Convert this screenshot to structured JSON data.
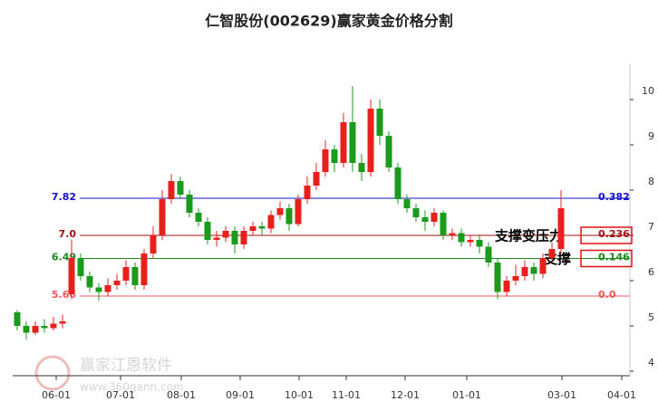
{
  "chart_data": {
    "type": "candlestick",
    "title": "仁智股份(002629)赢家黄金价格分割",
    "up_color": "#e8201c",
    "down_color": "#1c9a1c",
    "xlim": [
      -0.5,
      67.6
    ],
    "ylim": [
      3.9,
      10.8
    ],
    "yticks": [
      4,
      5,
      6,
      7,
      8,
      9,
      10
    ],
    "xticks": [
      {
        "value": 4.3,
        "label": "06-01"
      },
      {
        "value": 11.4,
        "label": "07-01"
      },
      {
        "value": 18.1,
        "label": "08-01"
      },
      {
        "value": 24.6,
        "label": "09-01"
      },
      {
        "value": 31.1,
        "label": "10-01"
      },
      {
        "value": 36.3,
        "label": "11-01"
      },
      {
        "value": 42.8,
        "label": "12-01"
      },
      {
        "value": 49.6,
        "label": "01-01"
      },
      {
        "value": 60.1,
        "label": "03-01"
      },
      {
        "value": 66.7,
        "label": "04-01"
      }
    ],
    "open": [
      5.3,
      5.0,
      4.85,
      5.0,
      4.95,
      5.05,
      5.7,
      6.5,
      6.1,
      5.85,
      5.75,
      5.9,
      6.0,
      6.3,
      5.9,
      6.6,
      7.0,
      7.8,
      8.2,
      7.9,
      7.5,
      7.3,
      6.9,
      6.95,
      7.1,
      6.8,
      7.1,
      7.2,
      7.15,
      7.45,
      7.6,
      7.25,
      7.8,
      8.1,
      8.4,
      8.9,
      8.6,
      9.5,
      8.6,
      8.4,
      9.8,
      9.2,
      8.5,
      7.8,
      7.6,
      7.4,
      7.3,
      7.5,
      7.0,
      7.05,
      6.85,
      6.9,
      6.75,
      6.4,
      5.75,
      6.0,
      6.1,
      6.3,
      6.15,
      6.5,
      6.7
    ],
    "close": [
      5.0,
      4.85,
      5.0,
      4.95,
      5.05,
      5.1,
      6.5,
      6.1,
      5.85,
      5.75,
      5.9,
      6.0,
      6.3,
      5.9,
      6.6,
      7.0,
      7.8,
      8.2,
      7.9,
      7.5,
      7.3,
      6.9,
      6.95,
      7.1,
      6.8,
      7.1,
      7.2,
      7.15,
      7.45,
      7.6,
      7.25,
      7.8,
      8.1,
      8.4,
      8.9,
      8.6,
      9.5,
      8.6,
      8.4,
      9.8,
      9.2,
      8.5,
      7.8,
      7.6,
      7.4,
      7.3,
      7.5,
      7.0,
      7.05,
      6.85,
      6.9,
      6.75,
      6.4,
      5.75,
      6.0,
      6.1,
      6.3,
      6.15,
      6.5,
      6.7,
      7.6
    ],
    "high": [
      5.35,
      5.1,
      5.1,
      5.15,
      5.2,
      5.25,
      6.9,
      6.6,
      6.2,
      5.95,
      6.05,
      6.15,
      6.45,
      6.4,
      6.7,
      7.2,
      8.0,
      8.35,
      8.3,
      8.0,
      7.6,
      7.4,
      7.1,
      7.2,
      7.2,
      7.2,
      7.3,
      7.3,
      7.55,
      7.75,
      7.7,
      7.9,
      8.3,
      8.6,
      9.1,
      9.0,
      9.7,
      10.3,
      8.8,
      10.0,
      10.0,
      9.3,
      8.6,
      7.9,
      7.7,
      7.55,
      7.6,
      7.55,
      7.15,
      7.15,
      7.0,
      7.0,
      6.85,
      6.5,
      6.1,
      6.35,
      6.45,
      6.4,
      6.6,
      6.85,
      8.0
    ],
    "low": [
      4.9,
      4.7,
      4.8,
      4.85,
      4.9,
      4.95,
      5.6,
      6.0,
      5.75,
      5.55,
      5.65,
      5.8,
      5.9,
      5.8,
      5.8,
      6.5,
      6.9,
      7.7,
      7.8,
      7.4,
      7.2,
      6.8,
      6.75,
      6.85,
      6.6,
      6.7,
      7.0,
      7.0,
      7.05,
      7.35,
      7.1,
      7.2,
      7.7,
      8.0,
      8.3,
      8.4,
      8.5,
      8.4,
      8.2,
      8.3,
      9.0,
      8.4,
      7.7,
      7.5,
      7.3,
      7.1,
      7.2,
      6.9,
      6.9,
      6.75,
      6.75,
      6.6,
      6.3,
      5.6,
      5.65,
      5.9,
      6.0,
      6.0,
      6.05,
      6.4,
      6.6
    ],
    "levels": [
      {
        "value": 7.82,
        "label": "7.82",
        "ratio": "0.382",
        "color": "#1414c8"
      },
      {
        "value": 7,
        "label": "7.0",
        "ratio": "0.236",
        "color": "#a01010"
      },
      {
        "value": 6.49,
        "label": "6.49",
        "ratio": "0.146",
        "color": "#1c8a1c"
      },
      {
        "value": 5.66,
        "label": "5.66",
        "ratio": "0.0",
        "color": "#f05a5a"
      }
    ],
    "annotations": [
      "支撑变压力",
      "支撑"
    ],
    "watermark": [
      "赢家江恩软件",
      "www.360gann.com"
    ]
  }
}
